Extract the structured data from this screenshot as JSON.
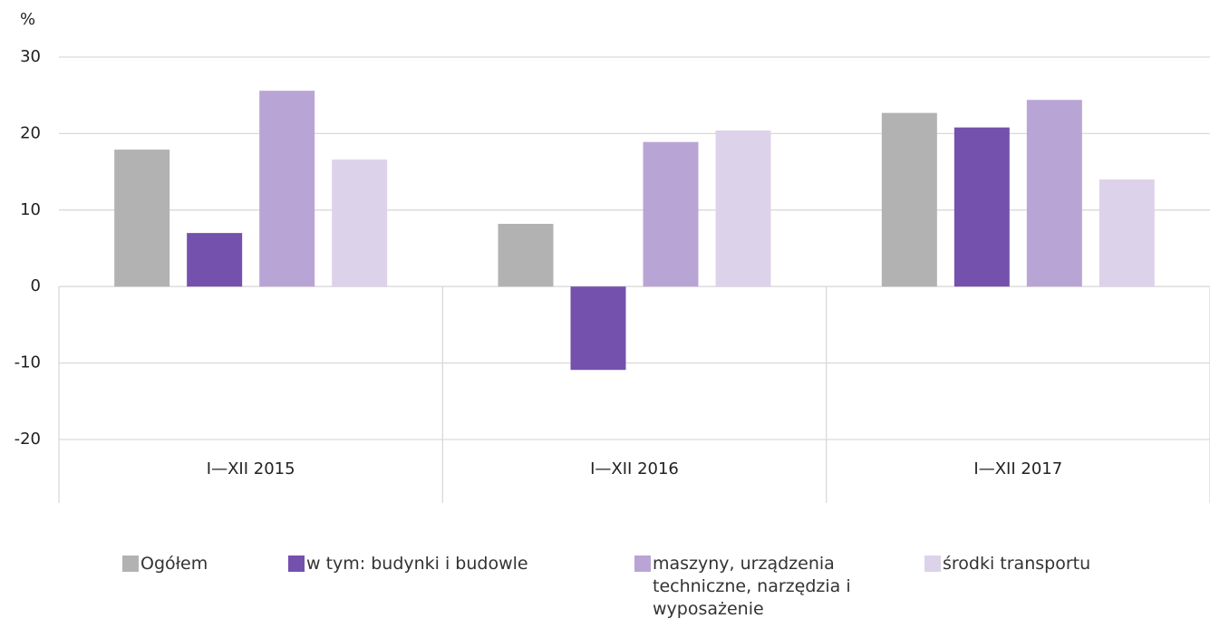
{
  "chart_data": {
    "type": "bar",
    "y_label": "%",
    "categories": [
      "I—XII 2015",
      "I—XII 2016",
      "I—XII 2017"
    ],
    "series": [
      {
        "name": "Ogółem",
        "color": "#b2b2b2",
        "values": [
          17.9,
          8.2,
          22.7
        ]
      },
      {
        "name": "w tym: budynki i budowle",
        "color": "#7451ad",
        "values": [
          7.0,
          -10.9,
          20.8
        ]
      },
      {
        "name": "maszyny, urządzenia techniczne, narzędzia i wyposażenie",
        "color": "#b9a5d5",
        "values": [
          25.6,
          18.9,
          24.4
        ]
      },
      {
        "name": "środki transportu",
        "color": "#dcd3ea",
        "values": [
          16.6,
          20.4,
          14.0
        ]
      }
    ],
    "ylim": [
      -20,
      30
    ],
    "yticks": [
      -20,
      -10,
      0,
      10,
      20,
      30
    ],
    "grid": true,
    "legend": "bottom"
  }
}
